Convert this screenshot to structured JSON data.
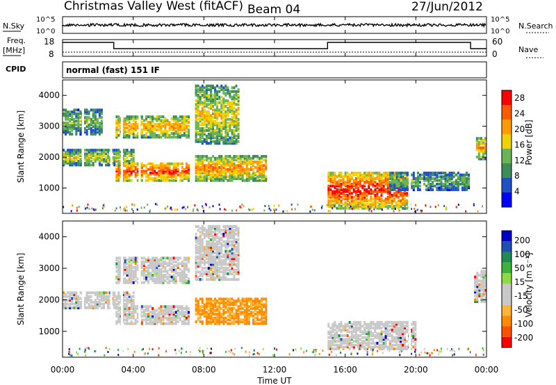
{
  "header": {
    "station": "Christmas Valley West (fitACF)",
    "beam": "Beam 04",
    "date": "27/Jun/2012",
    "cpid_label": "CPID",
    "cpid_value": "normal (fast) 151 IF"
  },
  "params_panel": {
    "nsky_label": "N.Sky",
    "nsearch_label": "N.Search",
    "nsky_ticks": [
      "10^5",
      "10^0"
    ],
    "freq_label_1": "Freq.",
    "freq_label_2": "[MHz]",
    "freq_ticks": [
      "18",
      "8"
    ],
    "nave_label": "Nave",
    "nave_ticks": [
      "60",
      "0"
    ]
  },
  "colors": {
    "power_scale": [
      "#0000ff",
      "#1e50c8",
      "#3e8c5a",
      "#6ab454",
      "#f0d200",
      "#ff9a00",
      "#ff5a00",
      "#ff0000"
    ],
    "velocity_scale": [
      "#ff0000",
      "#ff5000",
      "#ff8c00",
      "#ffb432",
      "#c8c8c8",
      "#c8c8c8",
      "#8cdc3c",
      "#3cb43c",
      "#1e8c50",
      "#1e50b4",
      "#0000c8"
    ]
  },
  "chart_data": [
    {
      "type": "heatmap",
      "name": "Power",
      "ylabel": "Slant Range [km]",
      "ylim": [
        180,
        4500
      ],
      "xlim": [
        0,
        24
      ],
      "y_ticks": [
        "4000",
        "3000",
        "2000",
        "1000"
      ],
      "colorbar_label": "Power [dB]",
      "colorbar_ticks": [
        "4",
        "8",
        "12",
        "16",
        "20",
        "24",
        "28"
      ],
      "colorbar_range": [
        0,
        30
      ],
      "bands": [
        {
          "t0": 0.0,
          "t1": 4.0,
          "r0": 1700,
          "r1": 2200,
          "level": 0.55
        },
        {
          "t0": 0.0,
          "t1": 2.2,
          "r0": 2700,
          "r1": 3500,
          "level": 0.45
        },
        {
          "t0": 3.0,
          "t1": 7.2,
          "r0": 1200,
          "r1": 1800,
          "level": 0.9
        },
        {
          "t0": 3.0,
          "t1": 7.2,
          "r0": 2600,
          "r1": 3300,
          "level": 0.7
        },
        {
          "t0": 7.5,
          "t1": 11.5,
          "r0": 1200,
          "r1": 2000,
          "level": 0.75
        },
        {
          "t0": 7.5,
          "t1": 10.0,
          "r0": 2400,
          "r1": 4300,
          "level": 0.6
        },
        {
          "t0": 15.0,
          "t1": 19.5,
          "r0": 300,
          "r1": 1500,
          "level": 0.95
        },
        {
          "t0": 18.5,
          "t1": 23.0,
          "r0": 900,
          "r1": 1500,
          "level": 0.4
        },
        {
          "t0": 23.4,
          "t1": 24.0,
          "r0": 1900,
          "r1": 2600,
          "level": 0.7
        }
      ]
    },
    {
      "type": "heatmap",
      "name": "Velocity",
      "ylabel": "Slant Range [km]",
      "ylim": [
        180,
        4500
      ],
      "xlim": [
        0,
        24
      ],
      "xlabel": "Time UT",
      "x_ticks": [
        "00:00",
        "04:00",
        "08:00",
        "12:00",
        "16:00",
        "20:00",
        "00:00"
      ],
      "y_ticks": [
        "4000",
        "3000",
        "2000",
        "1000"
      ],
      "colorbar_label": "Velocity [m s⁻¹]",
      "colorbar_ticks": [
        "200",
        "100",
        "50",
        "15",
        "-15",
        "-50",
        "-100",
        "-200"
      ],
      "bands": [
        {
          "t0": 0.0,
          "t1": 4.0,
          "r0": 1700,
          "r1": 2200,
          "kind": "ground"
        },
        {
          "t0": 3.0,
          "t1": 7.2,
          "r0": 2500,
          "r1": 3300,
          "kind": "ground"
        },
        {
          "t0": 3.0,
          "t1": 7.2,
          "r0": 1200,
          "r1": 1800,
          "kind": "ground"
        },
        {
          "t0": 7.5,
          "t1": 11.5,
          "r0": 1200,
          "r1": 2000,
          "kind": "negative"
        },
        {
          "t0": 7.5,
          "t1": 10.0,
          "r0": 2600,
          "r1": 4300,
          "kind": "ground"
        },
        {
          "t0": 15.0,
          "t1": 20.0,
          "r0": 400,
          "r1": 1300,
          "kind": "ground"
        },
        {
          "t0": 23.3,
          "t1": 24.0,
          "r0": 1900,
          "r1": 2900,
          "kind": "ground"
        }
      ]
    }
  ]
}
